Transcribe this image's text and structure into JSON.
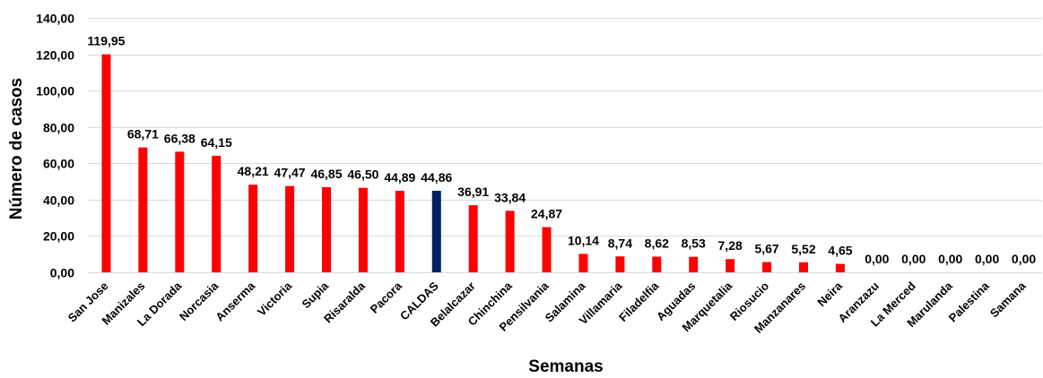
{
  "chart_data": {
    "type": "bar",
    "xlabel": "Semanas",
    "ylabel": "Número de casos",
    "ylim": [
      0,
      140
    ],
    "yticks": [
      "0,00",
      "20,00",
      "40,00",
      "60,00",
      "80,00",
      "100,00",
      "120,00",
      "140,00"
    ],
    "grid": true,
    "legend": "none",
    "colors": {
      "default": "#ff0000",
      "highlight": "#002060"
    },
    "highlight_category": "CALDAS",
    "categories": [
      "San Jose",
      "Manizales",
      "La Dorada",
      "Norcasia",
      "Anserma",
      "Victoria",
      "Supia",
      "Risaralda",
      "Pacora",
      "CALDAS",
      "Belalcazar",
      "Chinchina",
      "Pensilvania",
      "Salamina",
      "Villamaria",
      "Filadelfia",
      "Aguadas",
      "Marquetalia",
      "Riosucio",
      "Manzanares",
      "Neira",
      "Aranzazu",
      "La Merced",
      "Marulanda",
      "Palestina",
      "Samana"
    ],
    "values": [
      119.95,
      68.71,
      66.38,
      64.15,
      48.21,
      47.47,
      46.85,
      46.5,
      44.89,
      44.86,
      36.91,
      33.84,
      24.87,
      10.14,
      8.74,
      8.62,
      8.53,
      7.28,
      5.67,
      5.52,
      4.65,
      0.0,
      0.0,
      0.0,
      0.0,
      0.0
    ],
    "data_labels": [
      "119,95",
      "68,71",
      "66,38",
      "64,15",
      "48,21",
      "47,47",
      "46,85",
      "46,50",
      "44,89",
      "44,86",
      "36,91",
      "33,84",
      "24,87",
      "10,14",
      "8,74",
      "8,62",
      "8,53",
      "7,28",
      "5,67",
      "5,52",
      "4,65",
      "0,00",
      "0,00",
      "0,00",
      "0,00",
      "0,00"
    ]
  }
}
